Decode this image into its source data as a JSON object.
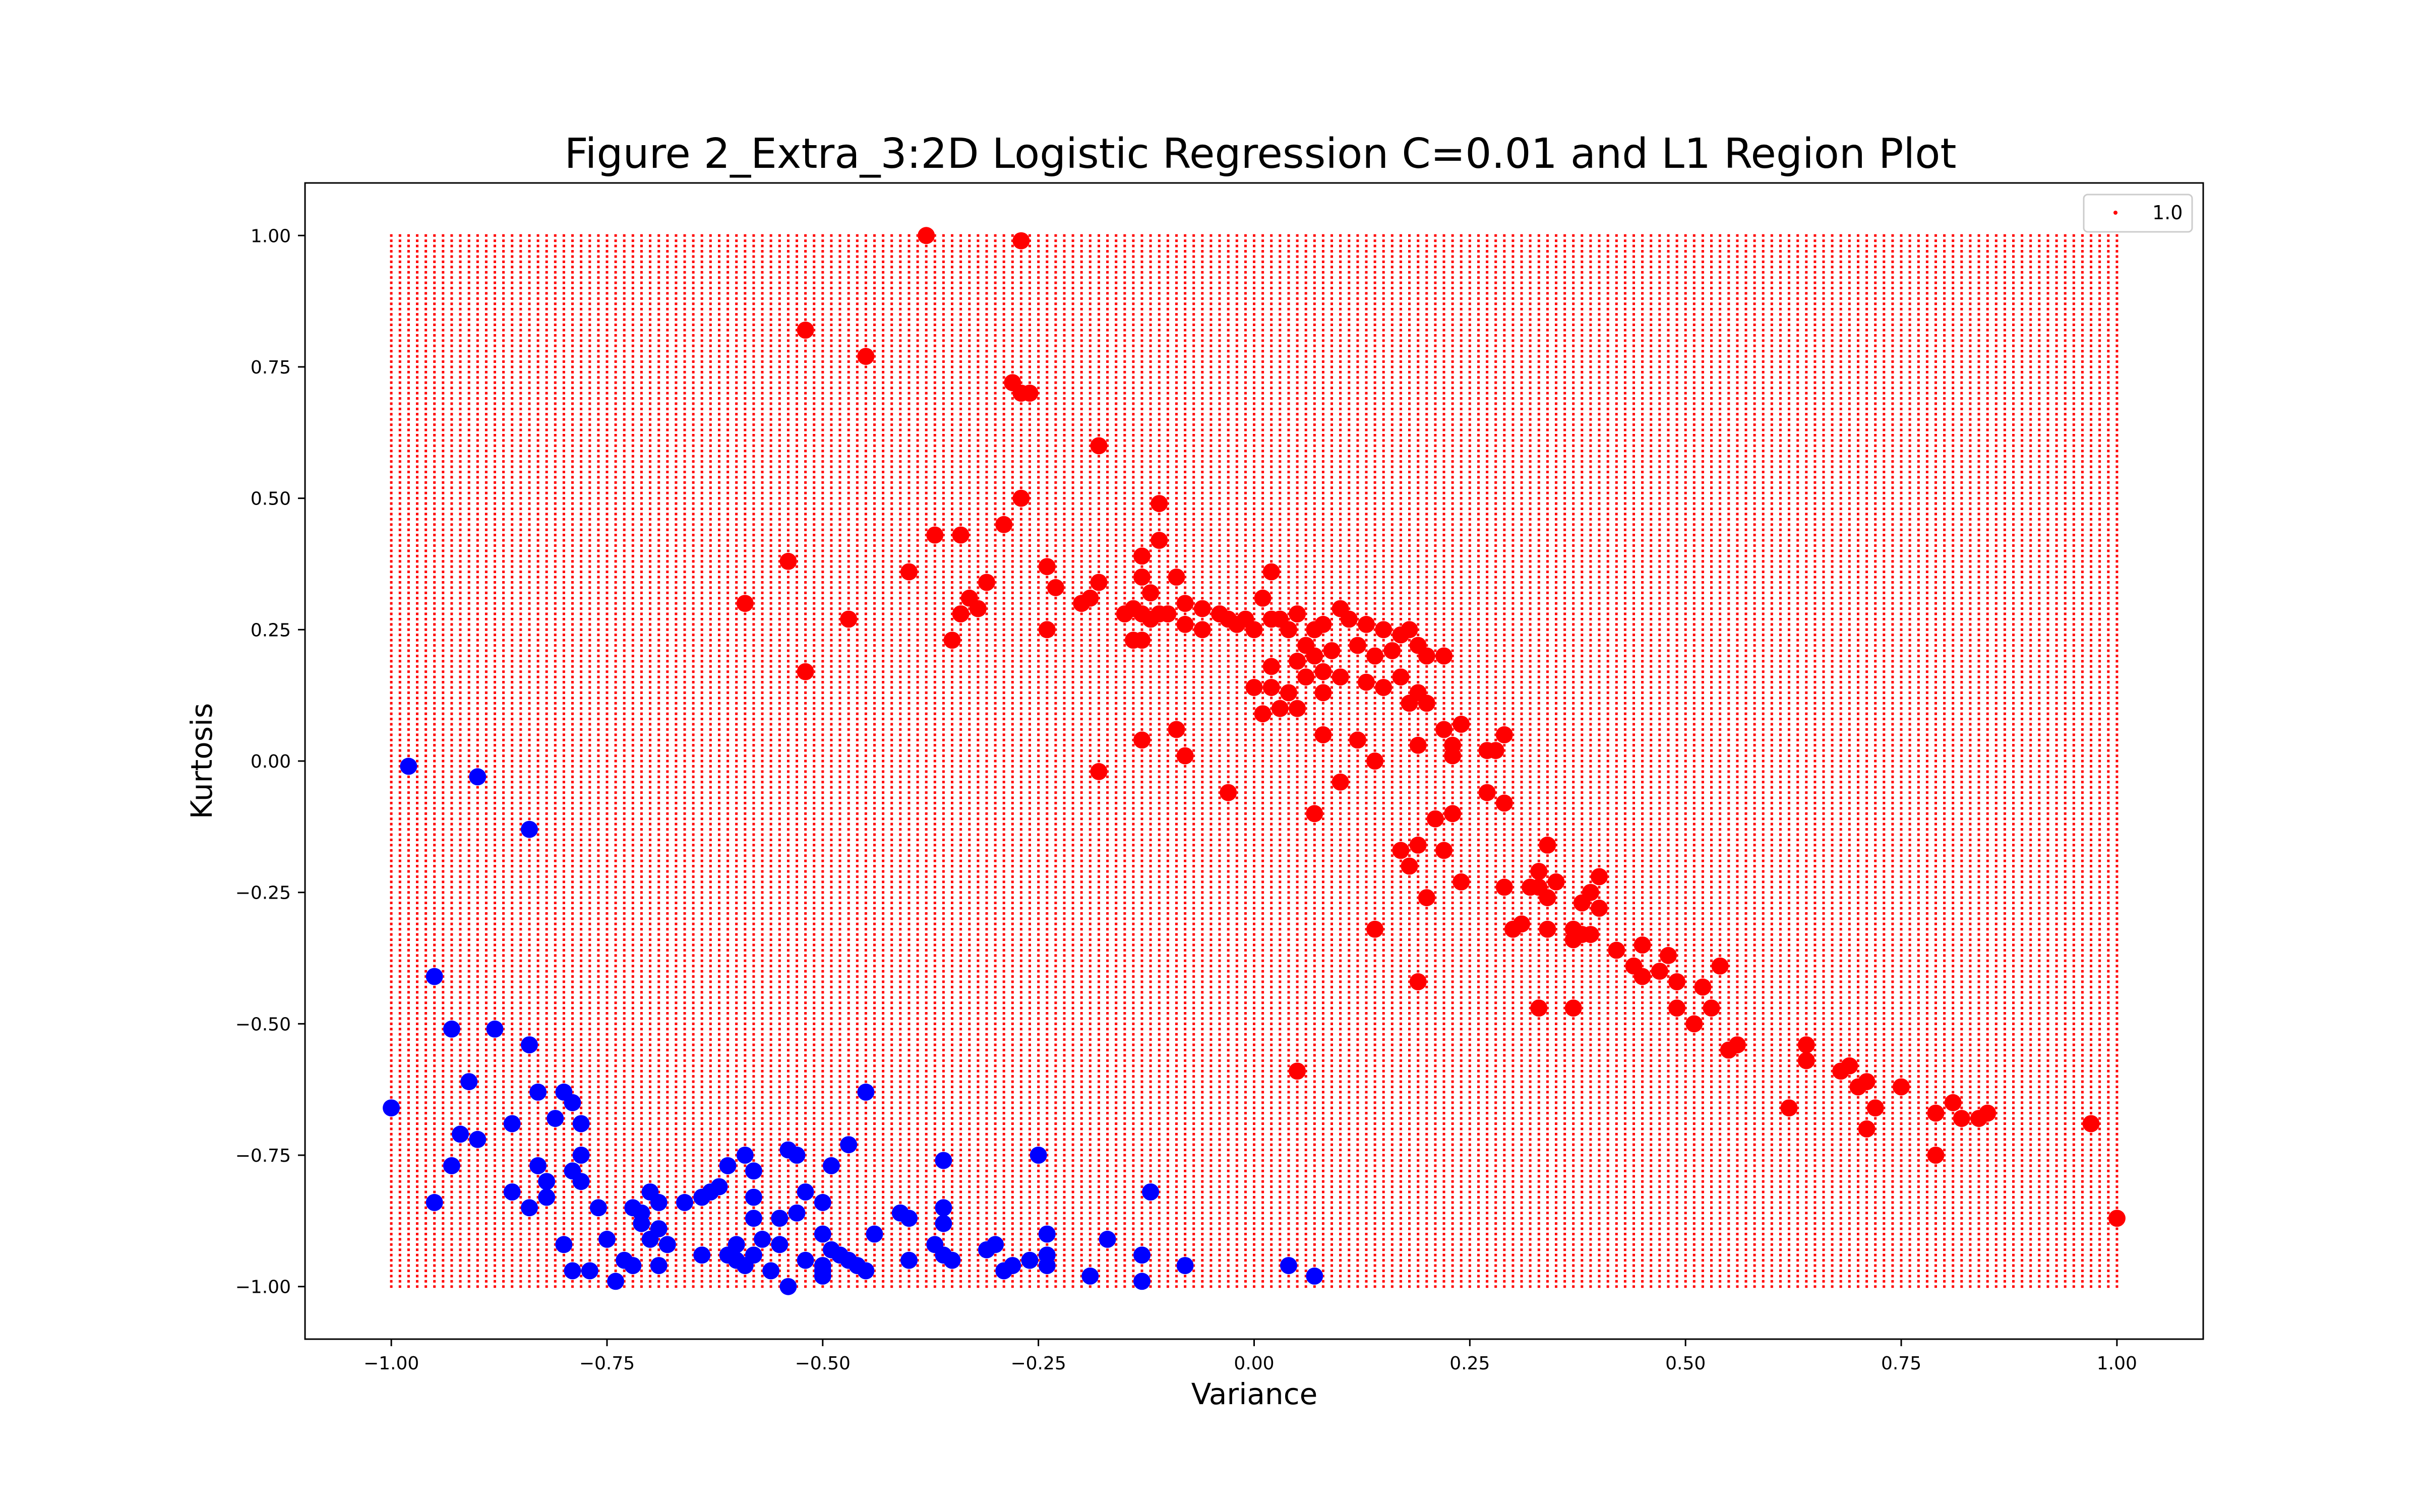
{
  "chart_data": {
    "type": "scatter",
    "title": "Figure 2_Extra_3:2D Logistic Regression C=0.01 and L1 Region Plot",
    "xlabel": "Variance",
    "ylabel": "Kurtosis",
    "xlim": [
      -1.1,
      1.1
    ],
    "ylim": [
      -1.1,
      1.1
    ],
    "xticks": [
      -1.0,
      -0.75,
      -0.5,
      -0.25,
      0.0,
      0.25,
      0.5,
      0.75,
      1.0
    ],
    "xtick_labels": [
      "−1.00",
      "−0.75",
      "−0.50",
      "−0.25",
      "0.00",
      "0.25",
      "0.50",
      "0.75",
      "1.00"
    ],
    "yticks": [
      -1.0,
      -0.75,
      -0.5,
      -0.25,
      0.0,
      0.25,
      0.5,
      0.75,
      1.0
    ],
    "ytick_labels": [
      "−1.00",
      "−0.75",
      "−0.50",
      "−0.25",
      "0.00",
      "0.25",
      "0.50",
      "0.75",
      "1.00"
    ],
    "grid": false,
    "legend": {
      "placement": "top-right",
      "entries": [
        "1.0"
      ]
    },
    "region": {
      "label": "1.0",
      "color": "#ff0000",
      "x_range": [
        -1.0,
        1.0
      ],
      "y_range": [
        -1.0,
        1.0
      ],
      "x_steps": 201,
      "y_steps": 201
    },
    "series": [
      {
        "color": "#ff0000",
        "points": [
          [
            -0.38,
            1.0
          ],
          [
            -0.27,
            0.99
          ],
          [
            -0.52,
            0.82
          ],
          [
            -0.45,
            0.77
          ],
          [
            -0.28,
            0.72
          ],
          [
            -0.27,
            0.7
          ],
          [
            -0.26,
            0.7
          ],
          [
            -0.18,
            0.6
          ],
          [
            -0.27,
            0.5
          ],
          [
            -0.11,
            0.49
          ],
          [
            -0.29,
            0.45
          ],
          [
            -0.37,
            0.43
          ],
          [
            -0.34,
            0.43
          ],
          [
            -0.11,
            0.42
          ],
          [
            -0.54,
            0.38
          ],
          [
            -0.13,
            0.39
          ],
          [
            -0.24,
            0.37
          ],
          [
            -0.4,
            0.36
          ],
          [
            -0.13,
            0.35
          ],
          [
            -0.09,
            0.35
          ],
          [
            0.02,
            0.36
          ],
          [
            -0.23,
            0.33
          ],
          [
            -0.18,
            0.34
          ],
          [
            -0.31,
            0.34
          ],
          [
            -0.33,
            0.31
          ],
          [
            -0.12,
            0.32
          ],
          [
            -0.59,
            0.3
          ],
          [
            -0.2,
            0.3
          ],
          [
            -0.19,
            0.31
          ],
          [
            -0.32,
            0.29
          ],
          [
            -0.34,
            0.28
          ],
          [
            -0.15,
            0.28
          ],
          [
            -0.14,
            0.29
          ],
          [
            -0.13,
            0.28
          ],
          [
            -0.12,
            0.27
          ],
          [
            -0.11,
            0.28
          ],
          [
            -0.1,
            0.28
          ],
          [
            -0.08,
            0.3
          ],
          [
            -0.06,
            0.29
          ],
          [
            -0.04,
            0.28
          ],
          [
            -0.03,
            0.27
          ],
          [
            -0.01,
            0.27
          ],
          [
            0.01,
            0.31
          ],
          [
            0.03,
            0.27
          ],
          [
            0.05,
            0.28
          ],
          [
            0.07,
            0.25
          ],
          [
            0.08,
            0.26
          ],
          [
            0.1,
            0.29
          ],
          [
            0.11,
            0.27
          ],
          [
            0.13,
            0.26
          ],
          [
            0.15,
            0.25
          ],
          [
            0.17,
            0.24
          ],
          [
            0.18,
            0.25
          ],
          [
            -0.47,
            0.27
          ],
          [
            -0.24,
            0.25
          ],
          [
            -0.14,
            0.23
          ],
          [
            -0.35,
            0.23
          ],
          [
            -0.13,
            0.23
          ],
          [
            -0.08,
            0.26
          ],
          [
            -0.06,
            0.25
          ],
          [
            -0.02,
            0.26
          ],
          [
            0.0,
            0.25
          ],
          [
            0.02,
            0.27
          ],
          [
            0.04,
            0.25
          ],
          [
            0.06,
            0.22
          ],
          [
            0.07,
            0.2
          ],
          [
            0.09,
            0.21
          ],
          [
            0.12,
            0.22
          ],
          [
            0.14,
            0.2
          ],
          [
            0.16,
            0.21
          ],
          [
            0.19,
            0.22
          ],
          [
            0.2,
            0.2
          ],
          [
            0.22,
            0.2
          ],
          [
            0.02,
            0.18
          ],
          [
            0.05,
            0.19
          ],
          [
            0.08,
            0.17
          ],
          [
            0.1,
            0.16
          ],
          [
            -0.52,
            0.17
          ],
          [
            0.0,
            0.14
          ],
          [
            0.02,
            0.14
          ],
          [
            0.04,
            0.13
          ],
          [
            0.06,
            0.16
          ],
          [
            0.08,
            0.13
          ],
          [
            0.13,
            0.15
          ],
          [
            0.15,
            0.14
          ],
          [
            0.17,
            0.16
          ],
          [
            0.19,
            0.13
          ],
          [
            0.03,
            0.1
          ],
          [
            0.01,
            0.09
          ],
          [
            0.05,
            0.1
          ],
          [
            0.18,
            0.11
          ],
          [
            0.2,
            0.11
          ],
          [
            -0.09,
            0.06
          ],
          [
            0.08,
            0.05
          ],
          [
            0.12,
            0.04
          ],
          [
            0.22,
            0.06
          ],
          [
            0.24,
            0.07
          ],
          [
            -0.13,
            0.04
          ],
          [
            -0.08,
            0.01
          ],
          [
            0.14,
            0.0
          ],
          [
            0.19,
            0.03
          ],
          [
            0.23,
            0.03
          ],
          [
            0.23,
            0.01
          ],
          [
            0.27,
            0.02
          ],
          [
            0.28,
            0.02
          ],
          [
            0.29,
            0.05
          ],
          [
            -0.18,
            -0.02
          ],
          [
            0.1,
            -0.04
          ],
          [
            -0.03,
            -0.06
          ],
          [
            0.27,
            -0.06
          ],
          [
            0.29,
            -0.08
          ],
          [
            0.07,
            -0.1
          ],
          [
            0.23,
            -0.1
          ],
          [
            0.21,
            -0.11
          ],
          [
            0.17,
            -0.17
          ],
          [
            0.19,
            -0.16
          ],
          [
            0.22,
            -0.17
          ],
          [
            0.18,
            -0.2
          ],
          [
            0.24,
            -0.23
          ],
          [
            0.2,
            -0.26
          ],
          [
            0.29,
            -0.24
          ],
          [
            0.32,
            -0.24
          ],
          [
            0.33,
            -0.21
          ],
          [
            0.34,
            -0.16
          ],
          [
            0.34,
            -0.26
          ],
          [
            0.35,
            -0.23
          ],
          [
            0.33,
            -0.24
          ],
          [
            0.38,
            -0.27
          ],
          [
            0.39,
            -0.25
          ],
          [
            0.4,
            -0.22
          ],
          [
            0.4,
            -0.28
          ],
          [
            0.3,
            -0.32
          ],
          [
            0.31,
            -0.31
          ],
          [
            0.34,
            -0.32
          ],
          [
            0.37,
            -0.32
          ],
          [
            0.38,
            -0.33
          ],
          [
            0.37,
            -0.34
          ],
          [
            0.39,
            -0.33
          ],
          [
            0.14,
            -0.32
          ],
          [
            0.42,
            -0.36
          ],
          [
            0.45,
            -0.35
          ],
          [
            0.44,
            -0.39
          ],
          [
            0.45,
            -0.41
          ],
          [
            0.47,
            -0.4
          ],
          [
            0.48,
            -0.37
          ],
          [
            0.49,
            -0.42
          ],
          [
            0.52,
            -0.43
          ],
          [
            0.54,
            -0.39
          ],
          [
            0.33,
            -0.47
          ],
          [
            0.37,
            -0.47
          ],
          [
            0.49,
            -0.47
          ],
          [
            0.51,
            -0.5
          ],
          [
            0.53,
            -0.47
          ],
          [
            0.19,
            -0.42
          ],
          [
            0.55,
            -0.55
          ],
          [
            0.56,
            -0.54
          ],
          [
            0.05,
            -0.59
          ],
          [
            0.64,
            -0.57
          ],
          [
            0.64,
            -0.54
          ],
          [
            0.68,
            -0.59
          ],
          [
            0.69,
            -0.58
          ],
          [
            0.7,
            -0.62
          ],
          [
            0.71,
            -0.61
          ],
          [
            0.72,
            -0.66
          ],
          [
            0.75,
            -0.62
          ],
          [
            0.62,
            -0.66
          ],
          [
            0.71,
            -0.7
          ],
          [
            0.79,
            -0.67
          ],
          [
            0.81,
            -0.65
          ],
          [
            0.82,
            -0.68
          ],
          [
            0.84,
            -0.68
          ],
          [
            0.85,
            -0.67
          ],
          [
            0.79,
            -0.75
          ],
          [
            0.97,
            -0.69
          ],
          [
            1.0,
            -0.87
          ]
        ]
      },
      {
        "color": "#0000ff",
        "points": [
          [
            -0.98,
            -0.01
          ],
          [
            -0.9,
            -0.03
          ],
          [
            -0.84,
            -0.13
          ],
          [
            -0.95,
            -0.41
          ],
          [
            -0.93,
            -0.51
          ],
          [
            -0.88,
            -0.51
          ],
          [
            -0.84,
            -0.54
          ],
          [
            -1.0,
            -0.66
          ],
          [
            -0.91,
            -0.61
          ],
          [
            -0.83,
            -0.63
          ],
          [
            -0.8,
            -0.63
          ],
          [
            -0.79,
            -0.65
          ],
          [
            -0.81,
            -0.68
          ],
          [
            -0.86,
            -0.69
          ],
          [
            -0.78,
            -0.69
          ],
          [
            -0.45,
            -0.63
          ],
          [
            -0.92,
            -0.71
          ],
          [
            -0.9,
            -0.72
          ],
          [
            -0.93,
            -0.77
          ],
          [
            -0.83,
            -0.77
          ],
          [
            -0.78,
            -0.75
          ],
          [
            -0.79,
            -0.78
          ],
          [
            -0.47,
            -0.73
          ],
          [
            -0.59,
            -0.75
          ],
          [
            -0.54,
            -0.74
          ],
          [
            -0.53,
            -0.75
          ],
          [
            -0.36,
            -0.76
          ],
          [
            -0.25,
            -0.75
          ],
          [
            -0.61,
            -0.77
          ],
          [
            -0.58,
            -0.78
          ],
          [
            -0.49,
            -0.77
          ],
          [
            -0.95,
            -0.84
          ],
          [
            -0.86,
            -0.82
          ],
          [
            -0.82,
            -0.8
          ],
          [
            -0.78,
            -0.8
          ],
          [
            -0.7,
            -0.82
          ],
          [
            -0.63,
            -0.82
          ],
          [
            -0.62,
            -0.81
          ],
          [
            -0.52,
            -0.82
          ],
          [
            -0.58,
            -0.83
          ],
          [
            -0.84,
            -0.85
          ],
          [
            -0.82,
            -0.83
          ],
          [
            -0.76,
            -0.85
          ],
          [
            -0.72,
            -0.85
          ],
          [
            -0.71,
            -0.86
          ],
          [
            -0.69,
            -0.84
          ],
          [
            -0.66,
            -0.84
          ],
          [
            -0.64,
            -0.83
          ],
          [
            -0.5,
            -0.84
          ],
          [
            -0.12,
            -0.82
          ],
          [
            -0.41,
            -0.86
          ],
          [
            -0.4,
            -0.87
          ],
          [
            -0.36,
            -0.85
          ],
          [
            -0.36,
            -0.88
          ],
          [
            -0.71,
            -0.88
          ],
          [
            -0.69,
            -0.89
          ],
          [
            -0.58,
            -0.87
          ],
          [
            -0.55,
            -0.87
          ],
          [
            -0.53,
            -0.86
          ],
          [
            -0.75,
            -0.91
          ],
          [
            -0.7,
            -0.91
          ],
          [
            -0.68,
            -0.92
          ],
          [
            -0.6,
            -0.92
          ],
          [
            -0.57,
            -0.91
          ],
          [
            -0.55,
            -0.92
          ],
          [
            -0.5,
            -0.9
          ],
          [
            -0.44,
            -0.9
          ],
          [
            -0.37,
            -0.92
          ],
          [
            -0.31,
            -0.93
          ],
          [
            -0.3,
            -0.92
          ],
          [
            -0.24,
            -0.9
          ],
          [
            -0.17,
            -0.91
          ],
          [
            -0.8,
            -0.92
          ],
          [
            -0.73,
            -0.95
          ],
          [
            -0.72,
            -0.96
          ],
          [
            -0.69,
            -0.96
          ],
          [
            -0.64,
            -0.94
          ],
          [
            -0.61,
            -0.94
          ],
          [
            -0.6,
            -0.95
          ],
          [
            -0.59,
            -0.96
          ],
          [
            -0.58,
            -0.94
          ],
          [
            -0.56,
            -0.97
          ],
          [
            -0.52,
            -0.95
          ],
          [
            -0.5,
            -0.96
          ],
          [
            -0.49,
            -0.93
          ],
          [
            -0.48,
            -0.94
          ],
          [
            -0.47,
            -0.95
          ],
          [
            -0.46,
            -0.96
          ],
          [
            -0.45,
            -0.97
          ],
          [
            -0.4,
            -0.95
          ],
          [
            -0.36,
            -0.94
          ],
          [
            -0.35,
            -0.95
          ],
          [
            -0.28,
            -0.96
          ],
          [
            -0.26,
            -0.95
          ],
          [
            -0.24,
            -0.96
          ],
          [
            -0.24,
            -0.94
          ],
          [
            -0.13,
            -0.94
          ],
          [
            -0.08,
            -0.96
          ],
          [
            0.04,
            -0.96
          ],
          [
            0.07,
            -0.98
          ],
          [
            -0.79,
            -0.97
          ],
          [
            -0.77,
            -0.97
          ],
          [
            -0.74,
            -0.99
          ],
          [
            -0.54,
            -1.0
          ],
          [
            -0.5,
            -0.98
          ],
          [
            -0.5,
            -0.97
          ],
          [
            -0.19,
            -0.98
          ],
          [
            -0.13,
            -0.99
          ],
          [
            -0.29,
            -0.97
          ]
        ]
      }
    ]
  }
}
